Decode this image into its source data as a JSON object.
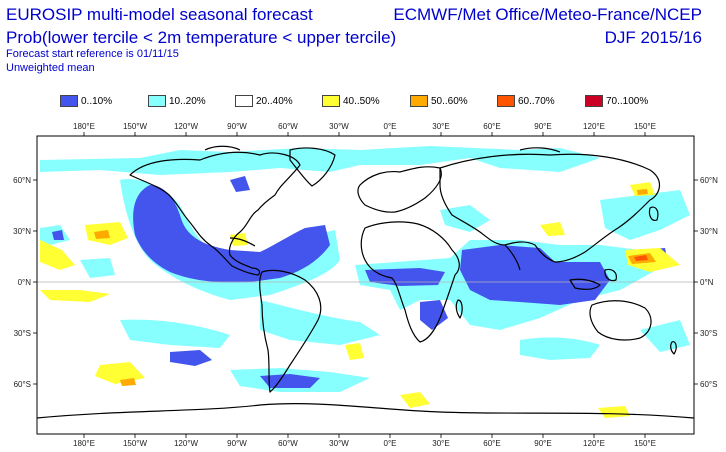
{
  "header": {
    "title_line1": "EUROSIP multi-model seasonal forecast",
    "title_line2": "Prob(lower tercile < 2m temperature < upper tercile)",
    "forecast_ref": "Forecast start reference is 01/11/15",
    "weighting": "Unweighted mean",
    "centres": "ECMWF/Met Office/Meteo-France/NCEP",
    "season": "DJF 2015/16"
  },
  "legend": [
    {
      "label": "0..10%",
      "color": "#4455ee"
    },
    {
      "label": "10..20%",
      "color": "#88ffff"
    },
    {
      "label": "20..40%",
      "color": "#ffffff"
    },
    {
      "label": "40..50%",
      "color": "#ffff33"
    },
    {
      "label": "50..60%",
      "color": "#ffaa00"
    },
    {
      "label": "60..70%",
      "color": "#ff5500"
    },
    {
      "label": "70..100%",
      "color": "#cc0022"
    }
  ],
  "axes": {
    "lon_labels": [
      "180°E",
      "150°W",
      "120°W",
      "90°W",
      "60°W",
      "30°W",
      "0°E",
      "30°E",
      "60°E",
      "90°E",
      "120°E",
      "150°E"
    ],
    "lat_labels_left": [
      "60°N",
      "30°N",
      "0°N",
      "30°S",
      "60°S"
    ],
    "lat_labels_right": [
      "60°N",
      "30°N",
      "0°N",
      "30°S",
      "60°S"
    ]
  }
}
